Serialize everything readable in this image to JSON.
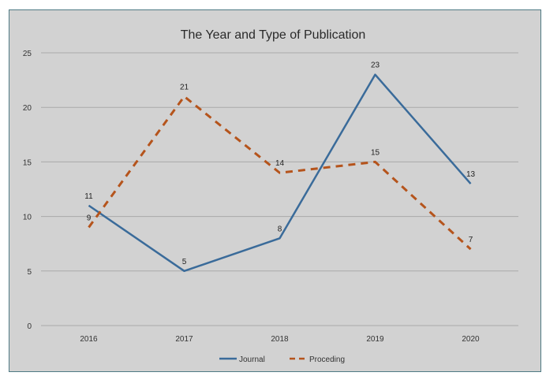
{
  "chart_data": {
    "type": "line",
    "title": "The Year and Type of Publication",
    "xlabel": "",
    "ylabel": "",
    "categories": [
      "2016",
      "2017",
      "2018",
      "2019",
      "2020"
    ],
    "ylim": [
      0,
      25
    ],
    "yticks": [
      0,
      5,
      10,
      15,
      20,
      25
    ],
    "grid": true,
    "legend_position": "bottom",
    "series": [
      {
        "name": "Journal",
        "values": [
          11,
          5,
          8,
          23,
          13
        ],
        "color": "#3a6b9a",
        "style": "solid"
      },
      {
        "name": "Proceding",
        "values": [
          9,
          21,
          14,
          15,
          7
        ],
        "color": "#b5541c",
        "style": "dashed"
      }
    ]
  }
}
